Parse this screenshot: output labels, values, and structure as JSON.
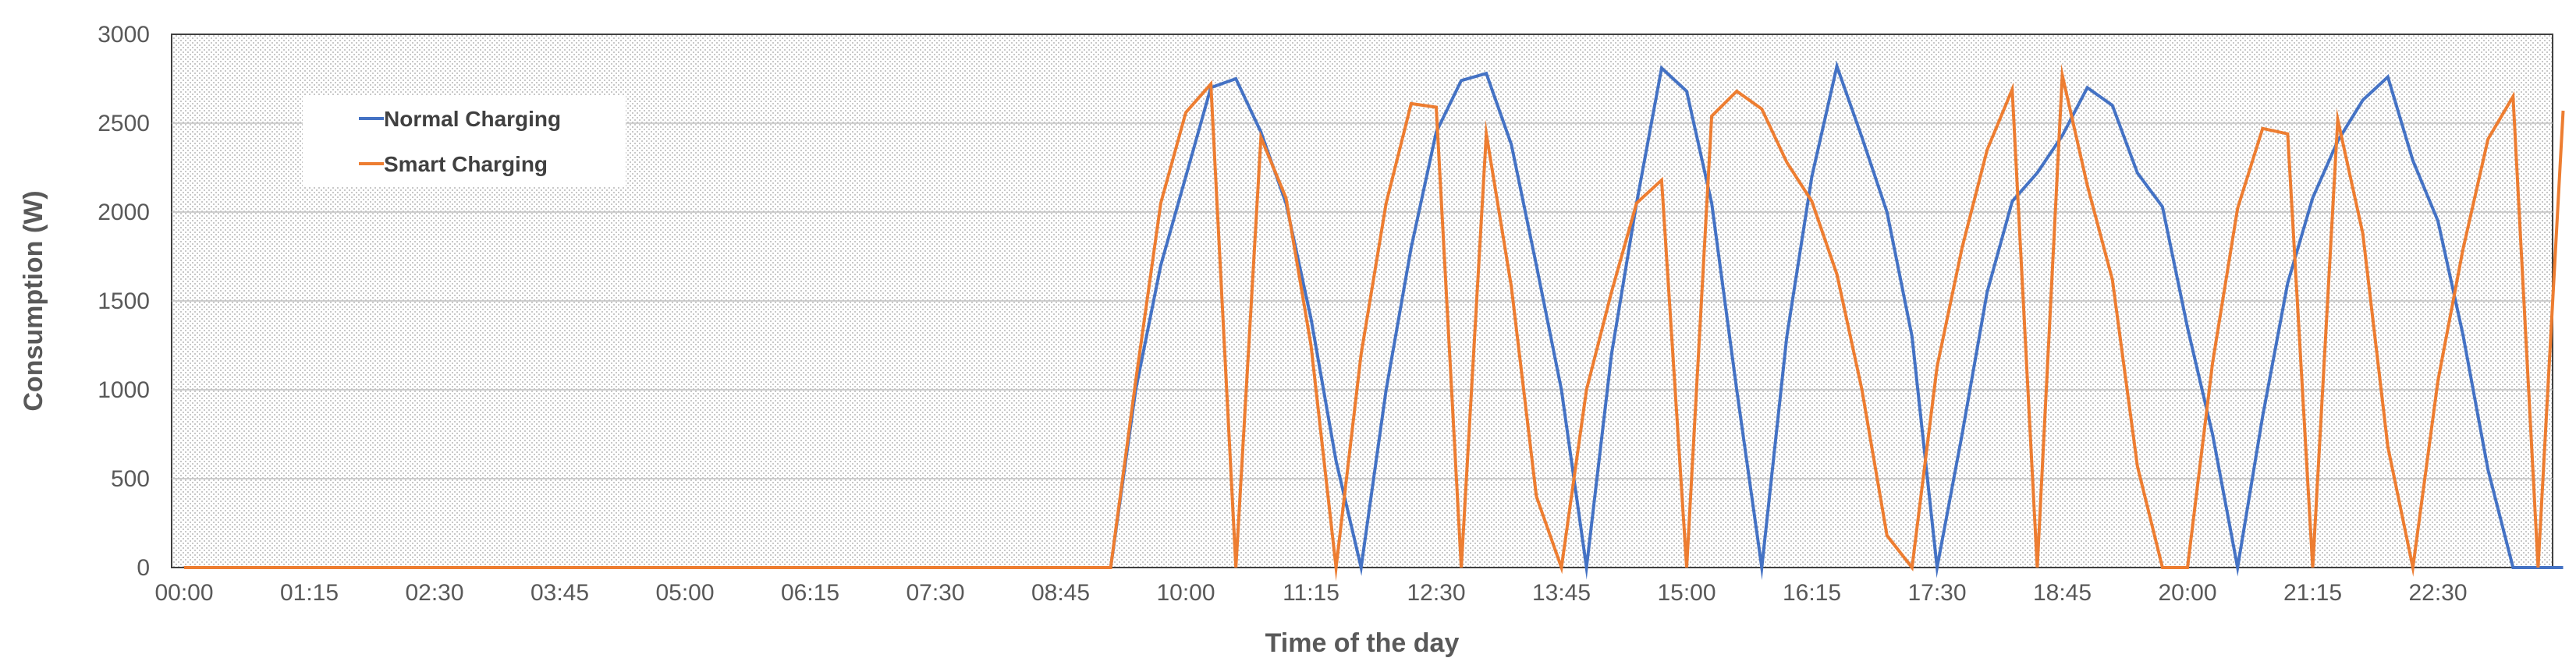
{
  "chart_data": {
    "type": "line",
    "xlabel": "Time of the day",
    "ylabel": "Consumption (W)",
    "ylim": [
      0,
      3000
    ],
    "yticks": [
      0,
      500,
      1000,
      1500,
      2000,
      2500,
      3000
    ],
    "interval_minutes": 15,
    "x_tick_labels": [
      "00:00",
      "01:15",
      "02:30",
      "03:45",
      "05:00",
      "06:15",
      "07:30",
      "08:45",
      "10:00",
      "11:15",
      "12:30",
      "13:45",
      "15:00",
      "16:15",
      "17:30",
      "18:45",
      "20:00",
      "21:15",
      "22:30"
    ],
    "grid": true,
    "legend_position": "top-left",
    "series": [
      {
        "name": "Normal Charging",
        "color": "#4472C4",
        "values": [
          0,
          0,
          0,
          0,
          0,
          0,
          0,
          0,
          0,
          0,
          0,
          0,
          0,
          0,
          0,
          0,
          0,
          0,
          0,
          0,
          0,
          0,
          0,
          0,
          0,
          0,
          0,
          0,
          0,
          0,
          0,
          0,
          0,
          0,
          0,
          0,
          0,
          0,
          1000,
          1700,
          2200,
          2700,
          2750,
          2450,
          2050,
          1400,
          600,
          0,
          1000,
          1800,
          2450,
          2740,
          2780,
          2380,
          1700,
          1000,
          0,
          1200,
          2050,
          2810,
          2680,
          2050,
          1000,
          0,
          1300,
          2200,
          2820,
          2420,
          2000,
          1300,
          0,
          750,
          1550,
          2060,
          2220,
          2430,
          2700,
          2600,
          2220,
          2030,
          1350,
          750,
          0,
          850,
          1600,
          2080,
          2400,
          2630,
          2760,
          2290,
          1950,
          1310,
          550,
          0,
          0,
          0
        ]
      },
      {
        "name": "Smart Charging",
        "color": "#ED7D31",
        "values": [
          0,
          0,
          0,
          0,
          0,
          0,
          0,
          0,
          0,
          0,
          0,
          0,
          0,
          0,
          0,
          0,
          0,
          0,
          0,
          0,
          0,
          0,
          0,
          0,
          0,
          0,
          0,
          0,
          0,
          0,
          0,
          0,
          0,
          0,
          0,
          0,
          0,
          0,
          1050,
          2050,
          2560,
          2720,
          0,
          2420,
          2080,
          1250,
          0,
          1200,
          2050,
          2610,
          2590,
          0,
          2440,
          1580,
          400,
          0,
          1000,
          1550,
          2050,
          2180,
          0,
          2540,
          2680,
          2580,
          2280,
          2060,
          1650,
          1000,
          180,
          0,
          1130,
          1800,
          2350,
          2690,
          0,
          2770,
          2150,
          1620,
          570,
          0,
          0,
          1150,
          2020,
          2470,
          2440,
          0,
          2520,
          1880,
          680,
          0,
          1050,
          1790,
          2410,
          2650,
          0,
          2570
        ]
      }
    ]
  }
}
